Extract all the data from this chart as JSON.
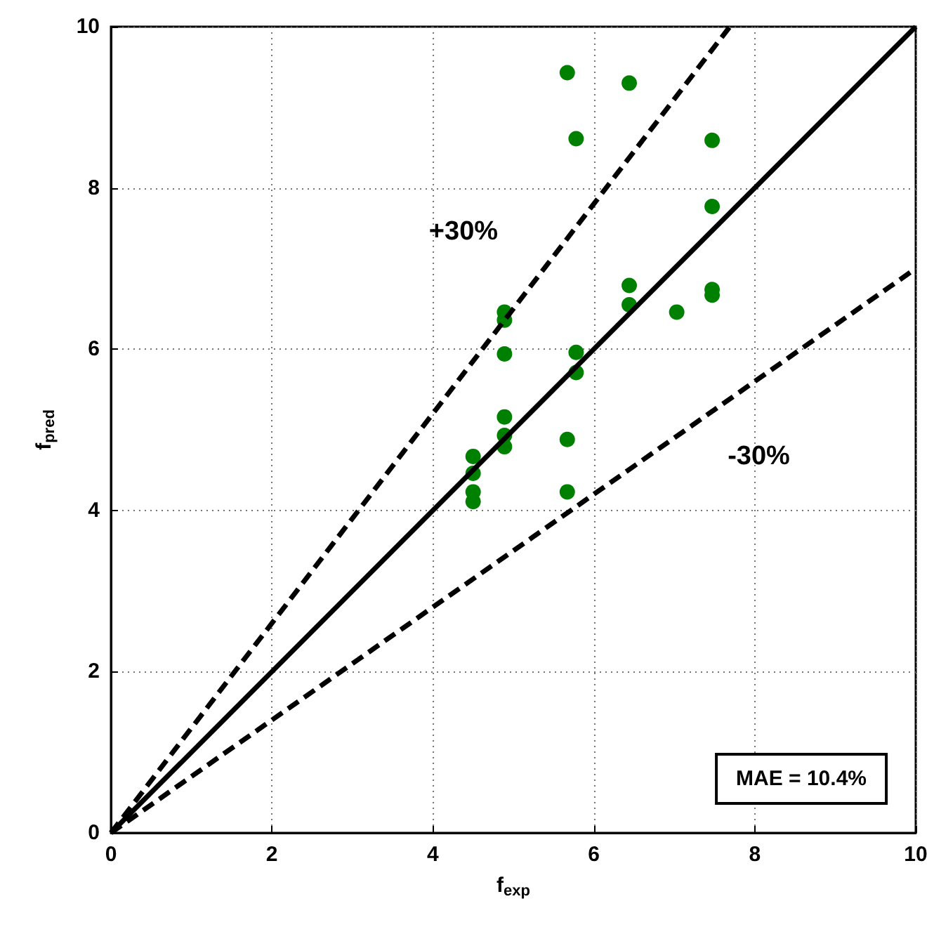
{
  "chart_data": {
    "type": "scatter",
    "xlabel": "f$_{exp}$",
    "ylabel": "f$_{pred}$",
    "xlim": [
      0,
      10
    ],
    "ylim": [
      0,
      10
    ],
    "xticks": [
      0,
      2,
      4,
      6,
      8,
      10
    ],
    "yticks": [
      0,
      2,
      4,
      6,
      8,
      10
    ],
    "grid": true,
    "series": [
      {
        "type": "line",
        "color": "#000000",
        "line_style": "solid",
        "marker": "none",
        "x": [
          0,
          10
        ],
        "values": [
          0,
          10
        ]
      },
      {
        "type": "line",
        "color": "#000000",
        "line_style": "dashed",
        "marker": "none",
        "x": [
          0,
          7.69
        ],
        "values": [
          0,
          10
        ]
      },
      {
        "type": "line",
        "color": "#000000",
        "line_style": "dashed",
        "marker": "none",
        "x": [
          0,
          10
        ],
        "values": [
          0,
          7
        ]
      },
      {
        "color": "#008000",
        "marker": "circle",
        "x": [
          5.67,
          6.44,
          5.78,
          7.47,
          7.47,
          6.44,
          6.44,
          7.03,
          7.47,
          7.47,
          5.78,
          5.78,
          5.67,
          5.67,
          4.89,
          4.89,
          4.89,
          4.89,
          4.89,
          4.89,
          4.5,
          4.5,
          4.5,
          4.5
        ],
        "values": [
          9.43,
          9.3,
          8.61,
          8.59,
          7.77,
          6.79,
          6.55,
          6.46,
          6.74,
          6.67,
          5.96,
          5.71,
          4.88,
          4.23,
          6.46,
          6.36,
          5.94,
          5.16,
          4.93,
          4.79,
          4.67,
          4.46,
          4.23,
          4.11
        ]
      }
    ],
    "annotations": [
      "+30%",
      "-30%",
      "MAE = 10.4%"
    ]
  }
}
